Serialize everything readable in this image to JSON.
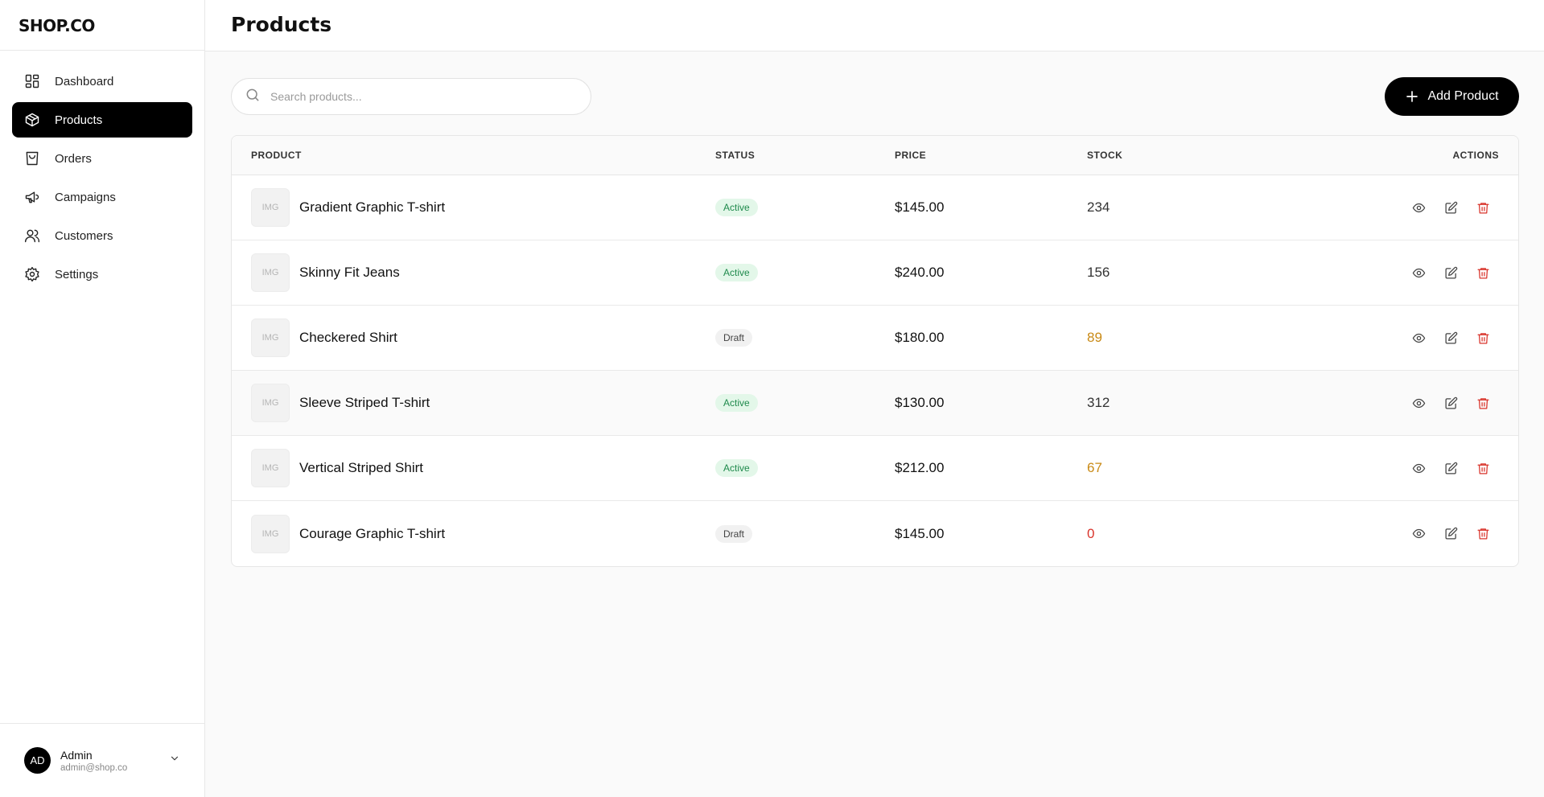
{
  "brand": "SHOP.CO",
  "nav": [
    {
      "label": "Dashboard",
      "icon": "dashboard-icon",
      "active": false
    },
    {
      "label": "Products",
      "icon": "package-icon",
      "active": true
    },
    {
      "label": "Orders",
      "icon": "shopping-bag-icon",
      "active": false
    },
    {
      "label": "Campaigns",
      "icon": "megaphone-icon",
      "active": false
    },
    {
      "label": "Customers",
      "icon": "users-icon",
      "active": false
    },
    {
      "label": "Settings",
      "icon": "gear-icon",
      "active": false
    }
  ],
  "user": {
    "initials": "AD",
    "name": "Admin",
    "email": "admin@shop.co"
  },
  "header": {
    "title": "Products"
  },
  "search": {
    "placeholder": "Search products...",
    "value": ""
  },
  "toolbar": {
    "add_label": "Add Product"
  },
  "table": {
    "columns": {
      "product": "PRODUCT",
      "status": "STATUS",
      "price": "PRICE",
      "stock": "STOCK",
      "actions": "ACTIONS"
    },
    "thumb_label": "IMG",
    "rows": [
      {
        "name": "Gradient Graphic T-shirt",
        "status": "Active",
        "price": "$145.00",
        "stock": "234",
        "stock_color": "#333333"
      },
      {
        "name": "Skinny Fit Jeans",
        "status": "Active",
        "price": "$240.00",
        "stock": "156",
        "stock_color": "#333333"
      },
      {
        "name": "Checkered Shirt",
        "status": "Draft",
        "price": "$180.00",
        "stock": "89",
        "stock_color": "#c98a16"
      },
      {
        "name": "Sleeve Striped T-shirt",
        "status": "Active",
        "price": "$130.00",
        "stock": "312",
        "stock_color": "#333333"
      },
      {
        "name": "Vertical Striped Shirt",
        "status": "Active",
        "price": "$212.00",
        "stock": "67",
        "stock_color": "#c98a16"
      },
      {
        "name": "Courage Graphic T-shirt",
        "status": "Draft",
        "price": "$145.00",
        "stock": "0",
        "stock_color": "#d9342b"
      }
    ]
  },
  "colors": {
    "accent": "#000000",
    "active_badge_bg": "#e3f7e9",
    "active_badge_text": "#1f8a4c",
    "delete": "#d9342b"
  }
}
